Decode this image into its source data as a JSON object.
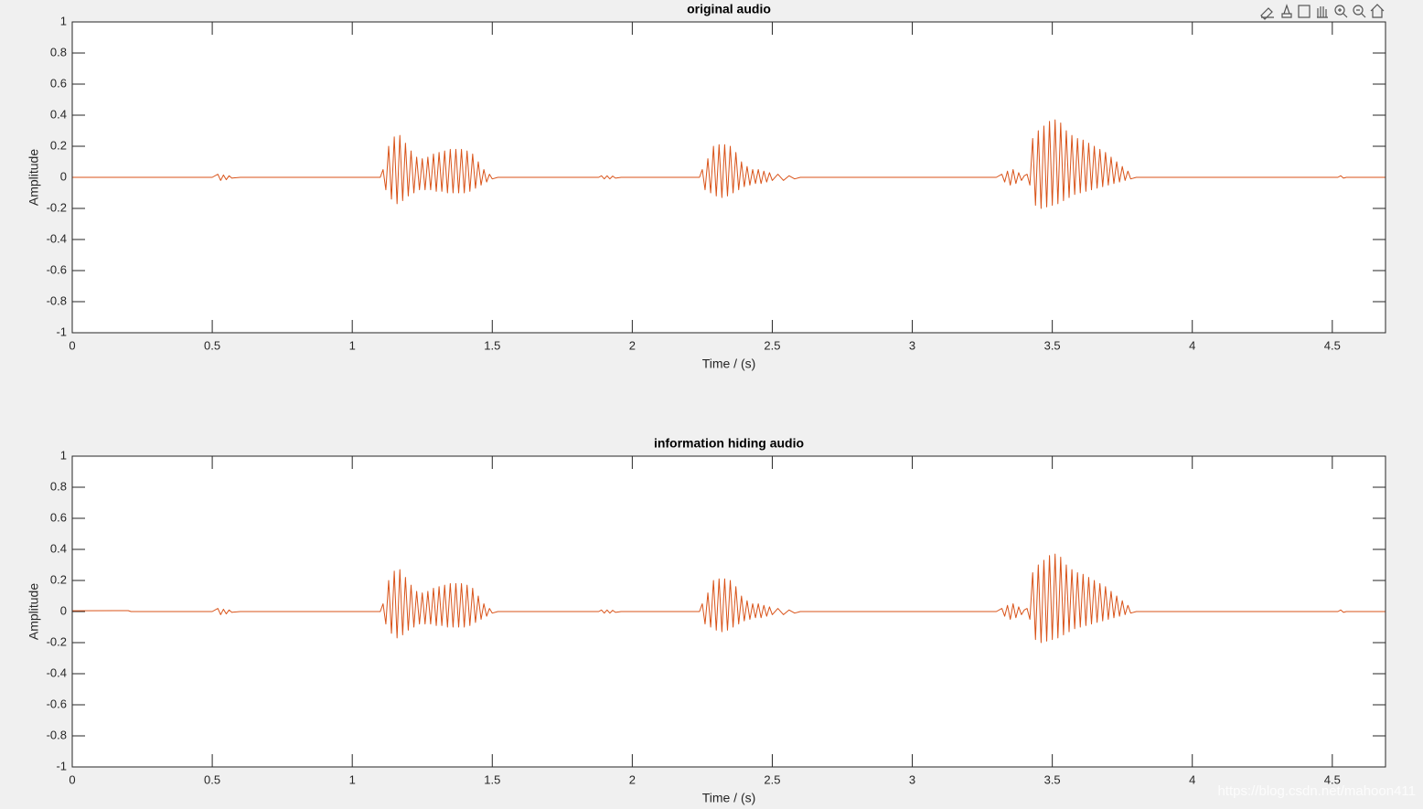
{
  "chart_data": [
    {
      "type": "line",
      "title": "original audio",
      "x_label": "Time / (s)",
      "y_label": "Amplitude",
      "color": "#d95319",
      "xlim": [
        0,
        4.69
      ],
      "ylim": [
        -1,
        1
      ],
      "xticks": [
        0,
        0.5,
        1,
        1.5,
        2,
        2.5,
        3,
        3.5,
        4,
        4.5
      ],
      "yticks": [
        -1,
        -0.8,
        -0.6,
        -0.4,
        -0.2,
        0,
        0.2,
        0.4,
        0.6,
        0.8,
        1
      ],
      "x": [
        0,
        0.5,
        0.52,
        0.53,
        0.54,
        0.55,
        0.56,
        0.57,
        0.6,
        1.1,
        1.11,
        1.12,
        1.13,
        1.14,
        1.15,
        1.16,
        1.17,
        1.18,
        1.19,
        1.2,
        1.21,
        1.22,
        1.23,
        1.24,
        1.25,
        1.26,
        1.27,
        1.28,
        1.29,
        1.3,
        1.31,
        1.32,
        1.33,
        1.34,
        1.35,
        1.36,
        1.37,
        1.38,
        1.39,
        1.4,
        1.41,
        1.42,
        1.43,
        1.44,
        1.45,
        1.46,
        1.47,
        1.48,
        1.49,
        1.5,
        1.52,
        1.88,
        1.89,
        1.9,
        1.91,
        1.92,
        1.93,
        1.94,
        1.96,
        2.24,
        2.25,
        2.26,
        2.27,
        2.28,
        2.29,
        2.3,
        2.31,
        2.32,
        2.33,
        2.34,
        2.35,
        2.36,
        2.37,
        2.38,
        2.39,
        2.4,
        2.41,
        2.42,
        2.43,
        2.44,
        2.45,
        2.46,
        2.47,
        2.48,
        2.49,
        2.5,
        2.52,
        2.54,
        2.56,
        2.58,
        2.6,
        3.3,
        3.32,
        3.33,
        3.34,
        3.35,
        3.36,
        3.37,
        3.38,
        3.39,
        3.4,
        3.41,
        3.42,
        3.43,
        3.44,
        3.45,
        3.46,
        3.47,
        3.48,
        3.49,
        3.5,
        3.51,
        3.52,
        3.53,
        3.54,
        3.55,
        3.56,
        3.57,
        3.58,
        3.59,
        3.6,
        3.61,
        3.62,
        3.63,
        3.64,
        3.65,
        3.66,
        3.67,
        3.68,
        3.69,
        3.7,
        3.71,
        3.72,
        3.73,
        3.74,
        3.75,
        3.76,
        3.77,
        3.78,
        3.8,
        4.52,
        4.53,
        4.54,
        4.55,
        4.69
      ],
      "values": [
        0,
        0,
        0.02,
        -0.02,
        0.015,
        -0.015,
        0.01,
        -0.005,
        0,
        0,
        0.05,
        -0.08,
        0.2,
        -0.14,
        0.26,
        -0.17,
        0.27,
        -0.15,
        0.22,
        -0.12,
        0.17,
        -0.1,
        0.13,
        -0.08,
        0.12,
        -0.08,
        0.13,
        -0.08,
        0.15,
        -0.09,
        0.16,
        -0.09,
        0.17,
        -0.1,
        0.18,
        -0.1,
        0.18,
        -0.1,
        0.18,
        -0.1,
        0.17,
        -0.09,
        0.15,
        -0.07,
        0.1,
        -0.05,
        0.05,
        -0.03,
        0.02,
        -0.01,
        0,
        0,
        0.01,
        -0.01,
        0.01,
        -0.01,
        0.008,
        -0.005,
        0,
        0,
        0.05,
        -0.08,
        0.12,
        -0.1,
        0.2,
        -0.12,
        0.21,
        -0.13,
        0.21,
        -0.12,
        0.2,
        -0.1,
        0.16,
        -0.08,
        0.1,
        -0.06,
        0.07,
        -0.05,
        0.05,
        -0.04,
        0.05,
        -0.04,
        0.04,
        -0.03,
        0.03,
        -0.02,
        0.02,
        -0.02,
        0.01,
        -0.01,
        0,
        0,
        0.02,
        -0.03,
        0.04,
        -0.05,
        0.05,
        -0.04,
        0.03,
        -0.02,
        0.01,
        0.02,
        -0.05,
        0.25,
        -0.18,
        0.3,
        -0.2,
        0.33,
        -0.19,
        0.36,
        -0.18,
        0.37,
        -0.17,
        0.35,
        -0.15,
        0.3,
        -0.13,
        0.27,
        -0.11,
        0.25,
        -0.1,
        0.24,
        -0.09,
        0.22,
        -0.08,
        0.2,
        -0.07,
        0.18,
        -0.06,
        0.16,
        -0.05,
        0.13,
        -0.04,
        0.1,
        -0.03,
        0.07,
        -0.02,
        0.04,
        -0.01,
        0,
        0,
        0.01,
        -0.005,
        0,
        0
      ]
    },
    {
      "type": "line",
      "title": "information hiding audio",
      "x_label": "Time / (s)",
      "y_label": "Amplitude",
      "color": "#d95319",
      "xlim": [
        0,
        4.69
      ],
      "ylim": [
        -1,
        1
      ],
      "xticks": [
        0,
        0.5,
        1,
        1.5,
        2,
        2.5,
        3,
        3.5,
        4,
        4.5
      ],
      "yticks": [
        -1,
        -0.8,
        -0.6,
        -0.4,
        -0.2,
        0,
        0.2,
        0.4,
        0.6,
        0.8,
        1
      ],
      "x": [
        0,
        0.2,
        0.21,
        0.5,
        0.52,
        0.53,
        0.54,
        0.55,
        0.56,
        0.57,
        0.6,
        1.1,
        1.11,
        1.12,
        1.13,
        1.14,
        1.15,
        1.16,
        1.17,
        1.18,
        1.19,
        1.2,
        1.21,
        1.22,
        1.23,
        1.24,
        1.25,
        1.26,
        1.27,
        1.28,
        1.29,
        1.3,
        1.31,
        1.32,
        1.33,
        1.34,
        1.35,
        1.36,
        1.37,
        1.38,
        1.39,
        1.4,
        1.41,
        1.42,
        1.43,
        1.44,
        1.45,
        1.46,
        1.47,
        1.48,
        1.49,
        1.5,
        1.52,
        1.88,
        1.89,
        1.9,
        1.91,
        1.92,
        1.93,
        1.94,
        1.96,
        2.24,
        2.25,
        2.26,
        2.27,
        2.28,
        2.29,
        2.3,
        2.31,
        2.32,
        2.33,
        2.34,
        2.35,
        2.36,
        2.37,
        2.38,
        2.39,
        2.4,
        2.41,
        2.42,
        2.43,
        2.44,
        2.45,
        2.46,
        2.47,
        2.48,
        2.49,
        2.5,
        2.52,
        2.54,
        2.56,
        2.58,
        2.6,
        3.3,
        3.32,
        3.33,
        3.34,
        3.35,
        3.36,
        3.37,
        3.38,
        3.39,
        3.4,
        3.41,
        3.42,
        3.43,
        3.44,
        3.45,
        3.46,
        3.47,
        3.48,
        3.49,
        3.5,
        3.51,
        3.52,
        3.53,
        3.54,
        3.55,
        3.56,
        3.57,
        3.58,
        3.59,
        3.6,
        3.61,
        3.62,
        3.63,
        3.64,
        3.65,
        3.66,
        3.67,
        3.68,
        3.69,
        3.7,
        3.71,
        3.72,
        3.73,
        3.74,
        3.75,
        3.76,
        3.77,
        3.78,
        3.8,
        4.52,
        4.53,
        4.54,
        4.55,
        4.69
      ],
      "values": [
        0.005,
        0.006,
        0,
        0,
        0.02,
        -0.02,
        0.015,
        -0.015,
        0.01,
        -0.005,
        0,
        0,
        0.05,
        -0.08,
        0.2,
        -0.14,
        0.26,
        -0.17,
        0.27,
        -0.15,
        0.22,
        -0.12,
        0.17,
        -0.1,
        0.13,
        -0.08,
        0.12,
        -0.08,
        0.13,
        -0.08,
        0.15,
        -0.09,
        0.16,
        -0.09,
        0.17,
        -0.1,
        0.18,
        -0.1,
        0.18,
        -0.1,
        0.18,
        -0.1,
        0.17,
        -0.09,
        0.15,
        -0.07,
        0.1,
        -0.05,
        0.05,
        -0.03,
        0.02,
        -0.01,
        0,
        0,
        0.01,
        -0.01,
        0.01,
        -0.01,
        0.008,
        -0.005,
        0,
        0,
        0.05,
        -0.08,
        0.12,
        -0.1,
        0.2,
        -0.12,
        0.21,
        -0.13,
        0.21,
        -0.12,
        0.2,
        -0.1,
        0.16,
        -0.08,
        0.1,
        -0.06,
        0.07,
        -0.05,
        0.05,
        -0.04,
        0.05,
        -0.04,
        0.04,
        -0.03,
        0.03,
        -0.02,
        0.02,
        -0.02,
        0.01,
        -0.01,
        0,
        0,
        0.02,
        -0.03,
        0.04,
        -0.05,
        0.05,
        -0.04,
        0.03,
        -0.02,
        0.01,
        0.02,
        -0.05,
        0.25,
        -0.18,
        0.3,
        -0.2,
        0.33,
        -0.19,
        0.36,
        -0.18,
        0.37,
        -0.17,
        0.35,
        -0.15,
        0.3,
        -0.13,
        0.27,
        -0.11,
        0.25,
        -0.1,
        0.24,
        -0.09,
        0.22,
        -0.08,
        0.2,
        -0.07,
        0.18,
        -0.06,
        0.16,
        -0.05,
        0.13,
        -0.04,
        0.1,
        -0.03,
        0.07,
        -0.02,
        0.04,
        -0.01,
        0,
        0,
        0.01,
        -0.005,
        0,
        0
      ]
    }
  ],
  "watermark": "https://blog.csdn.net/mahoon411"
}
